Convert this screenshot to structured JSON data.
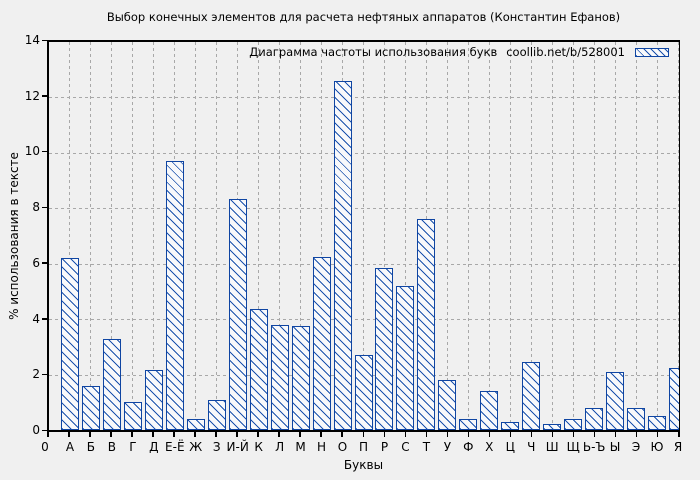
{
  "title": "Выбор конечных элементов для расчета нефтяных аппаратов (Константин Ефанов)",
  "legend": {
    "label": "Диаграмма частоты использования букв",
    "source": "coollib.net/b/528001"
  },
  "chart_data": {
    "type": "bar",
    "title": "Выбор конечных элементов для расчета нефтяных аппаратов (Константин Ефанов)",
    "categories": [
      "А",
      "Б",
      "В",
      "Г",
      "Д",
      "Е-Ё",
      "Ж",
      "З",
      "И-Й",
      "К",
      "Л",
      "М",
      "Н",
      "О",
      "П",
      "Р",
      "С",
      "Т",
      "У",
      "Ф",
      "Х",
      "Ц",
      "Ч",
      "Ш",
      "Щ",
      "Ь-Ъ",
      "Ы",
      "Э",
      "Ю",
      "Я"
    ],
    "values": [
      6.2,
      1.6,
      3.3,
      1.0,
      2.15,
      9.7,
      0.4,
      1.1,
      8.35,
      4.35,
      3.8,
      3.75,
      6.25,
      12.6,
      2.7,
      5.85,
      5.2,
      7.6,
      1.8,
      0.4,
      1.4,
      0.3,
      2.45,
      0.2,
      0.4,
      0.8,
      2.1,
      0.8,
      0.5,
      2.25
    ],
    "xlabel": "Буквы",
    "ylabel": "% использования в тексте",
    "ylim": [
      0,
      14
    ],
    "yticks": [
      0,
      2,
      4,
      6,
      8,
      10,
      12,
      14
    ],
    "x_origin_label": "0",
    "grid": true,
    "legend_entry": "Диаграмма частоты использования букв  coollib.net/b/528001",
    "legend_position": "top-right-inside",
    "bar_hatch": "backslash-diagonal"
  },
  "colors": {
    "background": "#f0f0f0",
    "bar_edge": "#0f45a2",
    "bar_hatch_line": "#1b52ad",
    "bar_fill": "#f8f9fb",
    "grid": "#a8a8a8",
    "axis": "#000000",
    "text": "#000000"
  }
}
